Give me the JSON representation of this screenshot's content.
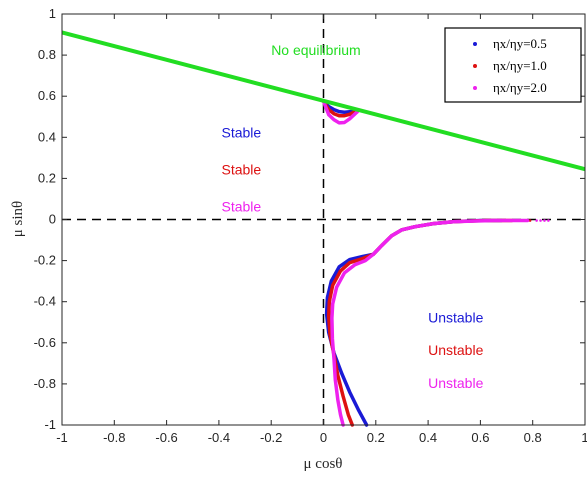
{
  "chart_data": {
    "type": "scatter",
    "title": "",
    "xlabel": "μ cosθ",
    "ylabel": "μ sinθ",
    "xlim": [
      -1,
      1
    ],
    "ylim": [
      -1,
      1
    ],
    "xticks": [
      -1,
      -0.8,
      -0.6,
      -0.4,
      -0.2,
      0,
      0.2,
      0.4,
      0.6,
      0.8,
      1
    ],
    "yticks": [
      -1,
      -0.8,
      -0.6,
      -0.4,
      -0.2,
      0,
      0.2,
      0.4,
      0.6,
      0.8,
      1
    ],
    "xtick_labels": [
      "-1",
      "-0.8",
      "-0.6",
      "-0.4",
      "-0.2",
      "0",
      "0.2",
      "0.4",
      "0.6",
      "0.8",
      "1"
    ],
    "ytick_labels": [
      "-1",
      "-0.8",
      "-0.6",
      "-0.4",
      "-0.2",
      "0",
      "0.2",
      "0.4",
      "0.6",
      "0.8",
      "1"
    ],
    "grid": false,
    "legend_position": "top-right",
    "boundary_line": {
      "color": "#22dd22",
      "points": [
        [
          -1,
          0.91
        ],
        [
          1,
          0.245
        ]
      ]
    },
    "reference_lines": [
      {
        "orientation": "vertical",
        "value": 0
      },
      {
        "orientation": "horizontal",
        "value": 0
      }
    ],
    "series": [
      {
        "name": "ηx/ηy=0.5",
        "color": "#1a1ad6",
        "upper": [
          [
            0,
            0.575
          ],
          [
            0.02,
            0.55
          ],
          [
            0.04,
            0.535
          ],
          [
            0.06,
            0.525
          ],
          [
            0.08,
            0.522
          ],
          [
            0.1,
            0.524
          ],
          [
            0.12,
            0.53
          ]
        ],
        "lower": [
          [
            0.68,
            -0.005
          ],
          [
            0.6,
            -0.005
          ],
          [
            0.5,
            -0.01
          ],
          [
            0.42,
            -0.02
          ],
          [
            0.35,
            -0.035
          ],
          [
            0.3,
            -0.05
          ],
          [
            0.26,
            -0.08
          ],
          [
            0.22,
            -0.13
          ],
          [
            0.19,
            -0.17
          ],
          [
            0.15,
            -0.18
          ],
          [
            0.1,
            -0.195
          ],
          [
            0.06,
            -0.23
          ],
          [
            0.03,
            -0.3
          ],
          [
            0.015,
            -0.38
          ],
          [
            0.012,
            -0.46
          ],
          [
            0.02,
            -0.55
          ],
          [
            0.04,
            -0.65
          ],
          [
            0.07,
            -0.75
          ],
          [
            0.1,
            -0.84
          ],
          [
            0.135,
            -0.93
          ],
          [
            0.165,
            -1.0
          ]
        ]
      },
      {
        "name": "ηx/ηy=1.0",
        "color": "#dd1111",
        "upper": [
          [
            0,
            0.575
          ],
          [
            0.02,
            0.535
          ],
          [
            0.04,
            0.515
          ],
          [
            0.06,
            0.505
          ],
          [
            0.08,
            0.505
          ],
          [
            0.1,
            0.512
          ],
          [
            0.12,
            0.525
          ]
        ],
        "lower": [
          [
            0.72,
            -0.005
          ],
          [
            0.62,
            -0.005
          ],
          [
            0.5,
            -0.01
          ],
          [
            0.42,
            -0.02
          ],
          [
            0.35,
            -0.035
          ],
          [
            0.3,
            -0.05
          ],
          [
            0.26,
            -0.08
          ],
          [
            0.22,
            -0.13
          ],
          [
            0.19,
            -0.17
          ],
          [
            0.15,
            -0.19
          ],
          [
            0.1,
            -0.21
          ],
          [
            0.065,
            -0.25
          ],
          [
            0.035,
            -0.32
          ],
          [
            0.022,
            -0.4
          ],
          [
            0.02,
            -0.47
          ],
          [
            0.025,
            -0.56
          ],
          [
            0.04,
            -0.66
          ],
          [
            0.055,
            -0.76
          ],
          [
            0.075,
            -0.86
          ],
          [
            0.095,
            -0.95
          ],
          [
            0.11,
            -1.0
          ]
        ]
      },
      {
        "name": "ηx/ηy=2.0",
        "color": "#ee22ee",
        "upper": [
          [
            0,
            0.575
          ],
          [
            0.02,
            0.51
          ],
          [
            0.04,
            0.485
          ],
          [
            0.06,
            0.47
          ],
          [
            0.08,
            0.472
          ],
          [
            0.1,
            0.49
          ],
          [
            0.13,
            0.525
          ]
        ],
        "lower": [
          [
            0.78,
            -0.005
          ],
          [
            0.65,
            -0.005
          ],
          [
            0.5,
            -0.01
          ],
          [
            0.42,
            -0.02
          ],
          [
            0.35,
            -0.035
          ],
          [
            0.3,
            -0.05
          ],
          [
            0.26,
            -0.08
          ],
          [
            0.22,
            -0.13
          ],
          [
            0.19,
            -0.17
          ],
          [
            0.16,
            -0.2
          ],
          [
            0.12,
            -0.22
          ],
          [
            0.08,
            -0.26
          ],
          [
            0.05,
            -0.33
          ],
          [
            0.035,
            -0.41
          ],
          [
            0.032,
            -0.48
          ],
          [
            0.034,
            -0.58
          ],
          [
            0.04,
            -0.68
          ],
          [
            0.045,
            -0.78
          ],
          [
            0.055,
            -0.88
          ],
          [
            0.065,
            -0.95
          ],
          [
            0.075,
            -1.0
          ]
        ]
      }
    ],
    "annotations": [
      {
        "text": "No equilibrium",
        "color": "#22dd22",
        "x": -0.2,
        "y": 0.8
      },
      {
        "text": "Stable",
        "color": "#1a1ad6",
        "x": -0.39,
        "y": 0.4
      },
      {
        "text": "Stable",
        "color": "#dd1111",
        "x": -0.39,
        "y": 0.22
      },
      {
        "text": "Stable",
        "color": "#ee22ee",
        "x": -0.39,
        "y": 0.04
      },
      {
        "text": "Unstable",
        "color": "#1a1ad6",
        "x": 0.4,
        "y": -0.5
      },
      {
        "text": "Unstable",
        "color": "#dd1111",
        "x": 0.4,
        "y": -0.66
      },
      {
        "text": "Unstable",
        "color": "#ee22ee",
        "x": 0.4,
        "y": -0.82
      }
    ]
  }
}
